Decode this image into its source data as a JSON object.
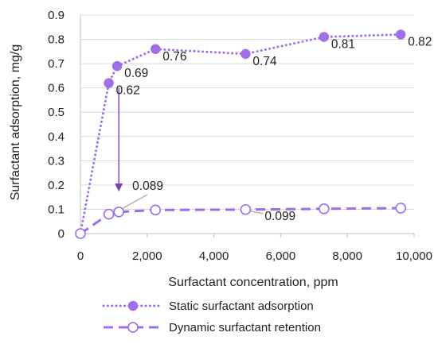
{
  "chart_data": {
    "type": "line",
    "xlabel": "Surfactant concentration, ppm",
    "ylabel": "Surfactant adsorption, mg/g",
    "xlim": [
      0,
      10000
    ],
    "ylim": [
      0,
      0.9
    ],
    "x_ticks": [
      "0",
      "2,000",
      "4,000",
      "6,000",
      "8,000",
      "10,000"
    ],
    "y_ticks": [
      "0",
      "0.1",
      "0.2",
      "0.3",
      "0.4",
      "0.5",
      "0.6",
      "0.7",
      "0.8",
      "0.9"
    ],
    "grid": "horizontal",
    "legend_position": "bottom",
    "colors": {
      "static": "#a070ea",
      "dynamic": "#9b6de8",
      "arrow": "#7b3fb8",
      "leader": "#a6a6a6",
      "grid": "#d9d9d9",
      "axis": "#bfbfbf"
    },
    "series": [
      {
        "name": "Static surfactant adsorption",
        "style": "dotted-filled-marker",
        "points": [
          {
            "x": 0,
            "y": 0
          },
          {
            "x": 850,
            "y": 0.62,
            "label": "0.62"
          },
          {
            "x": 1100,
            "y": 0.69,
            "label": "0.69"
          },
          {
            "x": 2250,
            "y": 0.76,
            "label": "0.76"
          },
          {
            "x": 4950,
            "y": 0.74,
            "label": "0.74"
          },
          {
            "x": 7300,
            "y": 0.81,
            "label": "0.81"
          },
          {
            "x": 9600,
            "y": 0.82,
            "label": "0.82"
          }
        ]
      },
      {
        "name": "Dynamic surfactant retention",
        "style": "dashed-open-marker",
        "points": [
          {
            "x": 0,
            "y": 0
          },
          {
            "x": 850,
            "y": 0.08
          },
          {
            "x": 1150,
            "y": 0.089,
            "label": "0.089"
          },
          {
            "x": 2250,
            "y": 0.097
          },
          {
            "x": 4950,
            "y": 0.099,
            "label": "0.099"
          },
          {
            "x": 7300,
            "y": 0.102
          },
          {
            "x": 9600,
            "y": 0.105
          }
        ]
      }
    ],
    "annotations": [
      {
        "type": "arrow",
        "from": {
          "x": 1150,
          "y": 0.6
        },
        "to": {
          "x": 1150,
          "y": 0.19
        }
      }
    ]
  }
}
